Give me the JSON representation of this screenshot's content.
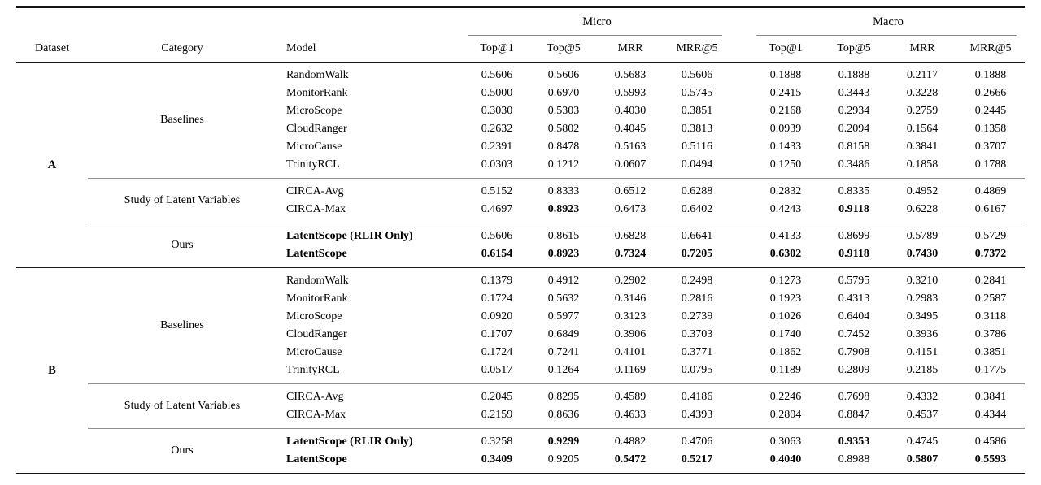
{
  "colors": {
    "rule_heavy": "#141414",
    "rule_mid": "#1a1a1a",
    "rule_light": "#8a8a8a",
    "text": "#000000",
    "background": "#ffffff"
  },
  "table": {
    "header": {
      "dataset": "Dataset",
      "category": "Category",
      "model": "Model",
      "groups": [
        {
          "label": "Micro"
        },
        {
          "label": "Macro"
        }
      ],
      "metrics": [
        "Top@1",
        "Top@5",
        "MRR",
        "MRR@5"
      ]
    },
    "datasets": [
      {
        "name": "A",
        "categories": [
          {
            "label": "Baselines",
            "rows": [
              {
                "model": "RandomWalk",
                "bold_model": false,
                "values": [
                  "0.5606",
                  "0.5606",
                  "0.5683",
                  "0.5606",
                  "0.1888",
                  "0.1888",
                  "0.2117",
                  "0.1888"
                ],
                "bold_values": []
              },
              {
                "model": "MonitorRank",
                "bold_model": false,
                "values": [
                  "0.5000",
                  "0.6970",
                  "0.5993",
                  "0.5745",
                  "0.2415",
                  "0.3443",
                  "0.3228",
                  "0.2666"
                ],
                "bold_values": []
              },
              {
                "model": "MicroScope",
                "bold_model": false,
                "values": [
                  "0.3030",
                  "0.5303",
                  "0.4030",
                  "0.3851",
                  "0.2168",
                  "0.2934",
                  "0.2759",
                  "0.2445"
                ],
                "bold_values": []
              },
              {
                "model": "CloudRanger",
                "bold_model": false,
                "values": [
                  "0.2632",
                  "0.5802",
                  "0.4045",
                  "0.3813",
                  "0.0939",
                  "0.2094",
                  "0.1564",
                  "0.1358"
                ],
                "bold_values": []
              },
              {
                "model": "MicroCause",
                "bold_model": false,
                "values": [
                  "0.2391",
                  "0.8478",
                  "0.5163",
                  "0.5116",
                  "0.1433",
                  "0.8158",
                  "0.3841",
                  "0.3707"
                ],
                "bold_values": []
              },
              {
                "model": "TrinityRCL",
                "bold_model": false,
                "values": [
                  "0.0303",
                  "0.1212",
                  "0.0607",
                  "0.0494",
                  "0.1250",
                  "0.3486",
                  "0.1858",
                  "0.1788"
                ],
                "bold_values": []
              }
            ]
          },
          {
            "label": "Study of Latent Variables",
            "rows": [
              {
                "model": "CIRCA-Avg",
                "bold_model": false,
                "values": [
                  "0.5152",
                  "0.8333",
                  "0.6512",
                  "0.6288",
                  "0.2832",
                  "0.8335",
                  "0.4952",
                  "0.4869"
                ],
                "bold_values": []
              },
              {
                "model": "CIRCA-Max",
                "bold_model": false,
                "values": [
                  "0.4697",
                  "0.8923",
                  "0.6473",
                  "0.6402",
                  "0.4243",
                  "0.9118",
                  "0.6228",
                  "0.6167"
                ],
                "bold_values": [
                  1,
                  5
                ]
              }
            ]
          },
          {
            "label": "Ours",
            "rows": [
              {
                "model": "LatentScope (RLIR Only)",
                "bold_model": true,
                "values": [
                  "0.5606",
                  "0.8615",
                  "0.6828",
                  "0.6641",
                  "0.4133",
                  "0.8699",
                  "0.5789",
                  "0.5729"
                ],
                "bold_values": []
              },
              {
                "model": "LatentScope",
                "bold_model": true,
                "values": [
                  "0.6154",
                  "0.8923",
                  "0.7324",
                  "0.7205",
                  "0.6302",
                  "0.9118",
                  "0.7430",
                  "0.7372"
                ],
                "bold_values": [
                  0,
                  1,
                  2,
                  3,
                  4,
                  5,
                  6,
                  7
                ]
              }
            ]
          }
        ]
      },
      {
        "name": "B",
        "categories": [
          {
            "label": "Baselines",
            "rows": [
              {
                "model": "RandomWalk",
                "bold_model": false,
                "values": [
                  "0.1379",
                  "0.4912",
                  "0.2902",
                  "0.2498",
                  "0.1273",
                  "0.5795",
                  "0.3210",
                  "0.2841"
                ],
                "bold_values": []
              },
              {
                "model": "MonitorRank",
                "bold_model": false,
                "values": [
                  "0.1724",
                  "0.5632",
                  "0.3146",
                  "0.2816",
                  "0.1923",
                  "0.4313",
                  "0.2983",
                  "0.2587"
                ],
                "bold_values": []
              },
              {
                "model": "MicroScope",
                "bold_model": false,
                "values": [
                  "0.0920",
                  "0.5977",
                  "0.3123",
                  "0.2739",
                  "0.1026",
                  "0.6404",
                  "0.3495",
                  "0.3118"
                ],
                "bold_values": []
              },
              {
                "model": "CloudRanger",
                "bold_model": false,
                "values": [
                  "0.1707",
                  "0.6849",
                  "0.3906",
                  "0.3703",
                  "0.1740",
                  "0.7452",
                  "0.3936",
                  "0.3786"
                ],
                "bold_values": []
              },
              {
                "model": "MicroCause",
                "bold_model": false,
                "values": [
                  "0.1724",
                  "0.7241",
                  "0.4101",
                  "0.3771",
                  "0.1862",
                  "0.7908",
                  "0.4151",
                  "0.3851"
                ],
                "bold_values": []
              },
              {
                "model": "TrinityRCL",
                "bold_model": false,
                "values": [
                  "0.0517",
                  "0.1264",
                  "0.1169",
                  "0.0795",
                  "0.1189",
                  "0.2809",
                  "0.2185",
                  "0.1775"
                ],
                "bold_values": []
              }
            ]
          },
          {
            "label": "Study of Latent Variables",
            "rows": [
              {
                "model": "CIRCA-Avg",
                "bold_model": false,
                "values": [
                  "0.2045",
                  "0.8295",
                  "0.4589",
                  "0.4186",
                  "0.2246",
                  "0.7698",
                  "0.4332",
                  "0.3841"
                ],
                "bold_values": []
              },
              {
                "model": "CIRCA-Max",
                "bold_model": false,
                "values": [
                  "0.2159",
                  "0.8636",
                  "0.4633",
                  "0.4393",
                  "0.2804",
                  "0.8847",
                  "0.4537",
                  "0.4344"
                ],
                "bold_values": []
              }
            ]
          },
          {
            "label": "Ours",
            "rows": [
              {
                "model": "LatentScope (RLIR Only)",
                "bold_model": true,
                "values": [
                  "0.3258",
                  "0.9299",
                  "0.4882",
                  "0.4706",
                  "0.3063",
                  "0.9353",
                  "0.4745",
                  "0.4586"
                ],
                "bold_values": [
                  1,
                  5
                ]
              },
              {
                "model": "LatentScope",
                "bold_model": true,
                "values": [
                  "0.3409",
                  "0.9205",
                  "0.5472",
                  "0.5217",
                  "0.4040",
                  "0.8988",
                  "0.5807",
                  "0.5593"
                ],
                "bold_values": [
                  0,
                  2,
                  3,
                  4,
                  6,
                  7
                ]
              }
            ]
          }
        ]
      }
    ]
  }
}
